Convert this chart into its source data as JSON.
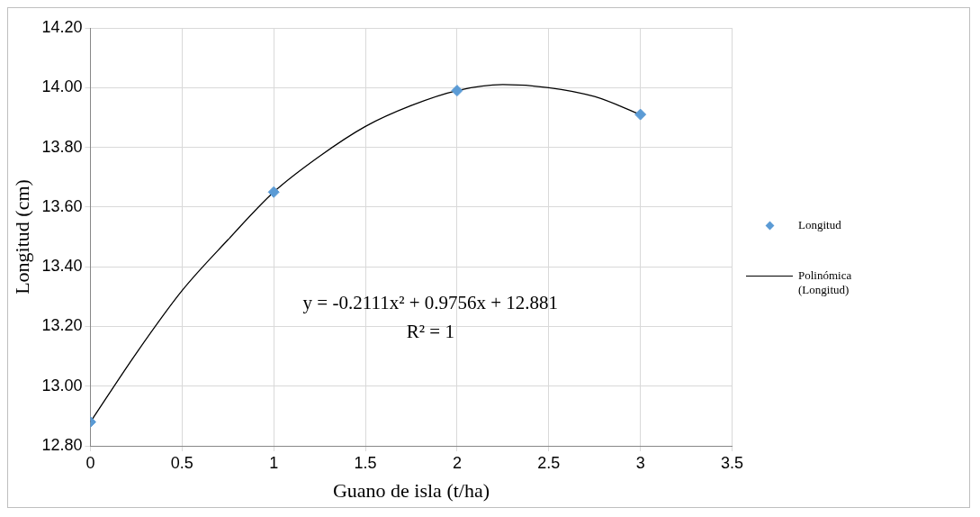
{
  "chart_data": {
    "type": "scatter",
    "xlabel": "Guano de isla (t/ha)",
    "ylabel": "Longitud (cm)",
    "xlim": [
      0,
      3.5
    ],
    "xticks": [
      0,
      0.5,
      1,
      1.5,
      2,
      2.5,
      3,
      3.5
    ],
    "ylim": [
      12.8,
      14.2
    ],
    "yticks": [
      {
        "value": 12.8,
        "label": "12.80"
      },
      {
        "value": 13,
        "label": "13.00"
      },
      {
        "value": 13.2,
        "label": "13.20"
      },
      {
        "value": 13.4,
        "label": "13.40"
      },
      {
        "value": 13.6,
        "label": "13.60"
      },
      {
        "value": 13.8,
        "label": "13.80"
      },
      {
        "value": 14,
        "label": "14.00"
      },
      {
        "value": 14.2,
        "label": "14.20"
      }
    ],
    "grid": true,
    "legend": "right",
    "series": [
      {
        "name": "Longitud",
        "type": "scatter",
        "marker": "diamond",
        "color": "#5b9bd5",
        "x": [
          0,
          1,
          2,
          3
        ],
        "values": [
          12.88,
          13.65,
          13.99,
          13.91
        ]
      },
      {
        "name": "Polinómica (Longitud)",
        "type": "line",
        "marker": "none",
        "color": "#000000",
        "line_style": "solid",
        "x": [
          0,
          0.25,
          0.5,
          0.75,
          1,
          1.25,
          1.5,
          1.75,
          2,
          2.25,
          2.5,
          2.75,
          3
        ],
        "values": [
          12.88,
          13.11,
          13.32,
          13.49,
          13.65,
          13.77,
          13.87,
          13.94,
          13.99,
          14.01,
          14.0,
          13.97,
          13.91
        ]
      }
    ],
    "annotations": [
      "y = -0.2111x² + 0.9756x + 12.881",
      "R² = 1"
    ]
  }
}
